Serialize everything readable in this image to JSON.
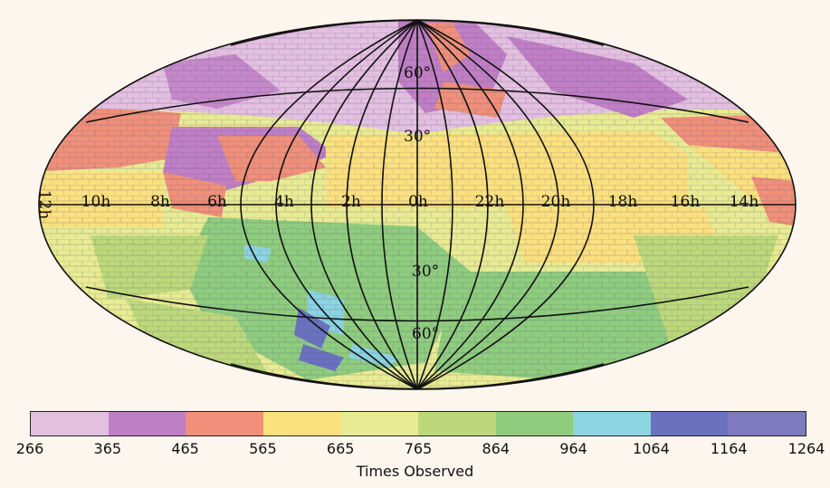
{
  "map": {
    "projection": "Hammer-Aitoff (all-sky)",
    "ra_labels": [
      "12h",
      "10h",
      "8h",
      "6h",
      "4h",
      "2h",
      "0h",
      "22h",
      "20h",
      "18h",
      "16h",
      "14h"
    ],
    "dec_labels": [
      "60°",
      "30°",
      "30°",
      "60°"
    ],
    "dec_values": [
      60,
      30,
      -30,
      -60
    ]
  },
  "colorbar": {
    "label": "Times Observed",
    "ticks": [
      "266",
      "365",
      "465",
      "565",
      "665",
      "765",
      "864",
      "964",
      "1064",
      "1164",
      "1264"
    ],
    "colors": [
      "#e3bfe0",
      "#c07fc4",
      "#f0907a",
      "#fbe07e",
      "#e8eb92",
      "#bcd87a",
      "#8fcc7e",
      "#8cd4e2",
      "#6a72c0",
      "#7e7abf"
    ]
  }
}
